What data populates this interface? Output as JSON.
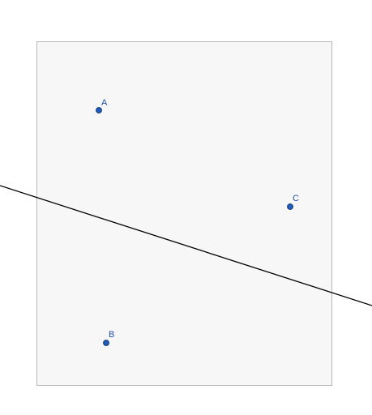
{
  "colors": {
    "background": "#ffffff",
    "panel_fill": "#f7f7f7",
    "panel_stroke": "#b8b8b8",
    "point_fill": "#1f5fbf",
    "point_stroke": "#0d2f6e",
    "label": "#1f4fa8",
    "line": "#000000"
  },
  "points": [
    {
      "id": "A",
      "label": "A"
    },
    {
      "id": "B",
      "label": "B"
    },
    {
      "id": "C",
      "label": "C"
    }
  ]
}
